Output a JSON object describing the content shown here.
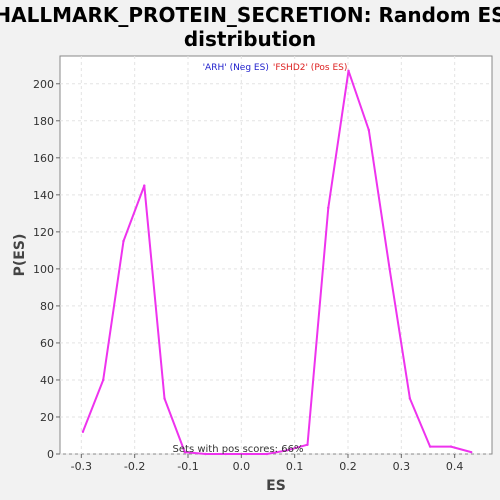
{
  "chart_data": {
    "type": "line",
    "title_lines": [
      "HALLMARK_PROTEIN_SECRETION: Random ES",
      "distribution"
    ],
    "xlabel": "ES",
    "ylabel": "P(ES)",
    "xlim": [
      -0.34,
      0.47
    ],
    "ylim": [
      0,
      215
    ],
    "xticks": [
      -0.3,
      -0.2,
      -0.1,
      0.0,
      0.1,
      0.2,
      0.3,
      0.4
    ],
    "xtick_labels": [
      "-0.3",
      "-0.2",
      "-0.1",
      "0.0",
      "0.1",
      "0.2",
      "0.3",
      "0.4"
    ],
    "yticks": [
      0,
      20,
      40,
      60,
      80,
      100,
      120,
      140,
      160,
      180,
      200
    ],
    "ytick_labels": [
      "0",
      "20",
      "40",
      "60",
      "80",
      "100",
      "120",
      "140",
      "160",
      "180",
      "200"
    ],
    "grid": true,
    "series": [
      {
        "color": "#ee33ee",
        "x": [
          -0.297,
          -0.259,
          -0.221,
          -0.182,
          -0.144,
          -0.106,
          -0.067,
          -0.029,
          0.009,
          0.048,
          0.086,
          0.124,
          0.163,
          0.201,
          0.239,
          0.278,
          0.316,
          0.354,
          0.393,
          0.431
        ],
        "y": [
          12,
          40,
          115,
          145,
          30,
          1,
          0,
          0,
          0,
          0,
          2,
          5,
          133,
          207,
          175,
          100,
          30,
          4,
          4,
          1
        ]
      }
    ],
    "legend": {
      "placement": "top-center",
      "entries": [
        {
          "text": "'ARH' (Neg ES)",
          "color": "#2222cc"
        },
        {
          "text": "'FSHD2' (Pos ES)",
          "color": "#dd2222"
        }
      ]
    },
    "annotation": "Sets with pos scores: 66%"
  }
}
